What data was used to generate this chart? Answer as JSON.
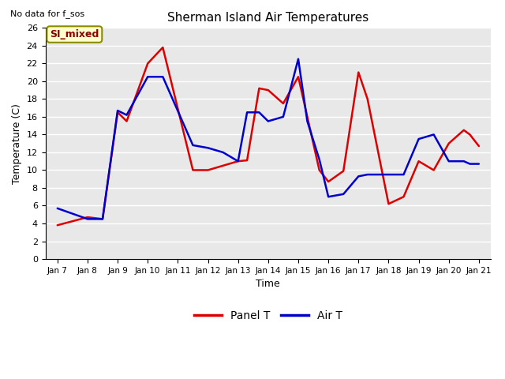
{
  "title": "Sherman Island Air Temperatures",
  "xlabel": "Time",
  "ylabel": "Temperature (C)",
  "top_left_text": "No data for f_sos",
  "annotation_label": "SI_mixed",
  "annotation_color": "#8b0000",
  "annotation_bg": "#ffffcc",
  "annotation_border": "#8b8b00",
  "ylim": [
    0,
    26
  ],
  "x_tick_labels": [
    "Jan 7",
    "Jan 8",
    "Jan 9",
    "Jan 10",
    "Jan 11",
    "Jan 12",
    "Jan 13",
    "Jan 14",
    "Jan 15",
    "Jan 16",
    "Jan 17",
    "Jan 18",
    "Jan 19",
    "Jan 20",
    "Jan 21"
  ],
  "plot_bg": "#e8e8e8",
  "fig_bg": "#ffffff",
  "grid_color": "#ffffff",
  "panel_T": {
    "color": "#dd0000",
    "label": "Panel T",
    "x": [
      0,
      1,
      1.5,
      2,
      2.3,
      3,
      3.5,
      4.5,
      5,
      5.5,
      6,
      6.3,
      6.7,
      7,
      7.5,
      8,
      8.3,
      8.7,
      9,
      9.5,
      10,
      10.3,
      11,
      11.5,
      12,
      12.5,
      13,
      13.5,
      13.7,
      14
    ],
    "y": [
      3.8,
      4.7,
      4.5,
      16.5,
      15.5,
      22.0,
      23.8,
      10.0,
      10.0,
      10.5,
      11.0,
      11.1,
      19.2,
      19.0,
      17.5,
      20.5,
      16.0,
      10.0,
      8.7,
      9.9,
      21.0,
      18.0,
      6.2,
      7.0,
      11.0,
      10.0,
      13.0,
      14.5,
      14.0,
      12.7
    ]
  },
  "air_T": {
    "color": "#0000cc",
    "label": "Air T",
    "x": [
      0,
      1,
      1.5,
      2,
      2.3,
      3,
      3.5,
      4.5,
      5,
      5.5,
      6,
      6.3,
      6.7,
      7,
      7.5,
      8,
      8.3,
      8.7,
      9,
      9.5,
      10,
      10.3,
      11,
      11.5,
      12,
      12.5,
      13,
      13.5,
      13.7,
      14
    ],
    "y": [
      5.7,
      4.5,
      4.5,
      16.7,
      16.2,
      20.5,
      20.5,
      12.8,
      12.5,
      12.0,
      11.0,
      16.5,
      16.5,
      15.5,
      16.0,
      22.5,
      15.5,
      11.2,
      7.0,
      7.3,
      9.3,
      9.5,
      9.5,
      9.5,
      13.5,
      14.0,
      11.0,
      11.0,
      10.7,
      10.7
    ]
  },
  "legend_entries": [
    "Panel T",
    "Air T"
  ],
  "legend_colors": [
    "#dd0000",
    "#0000cc"
  ]
}
